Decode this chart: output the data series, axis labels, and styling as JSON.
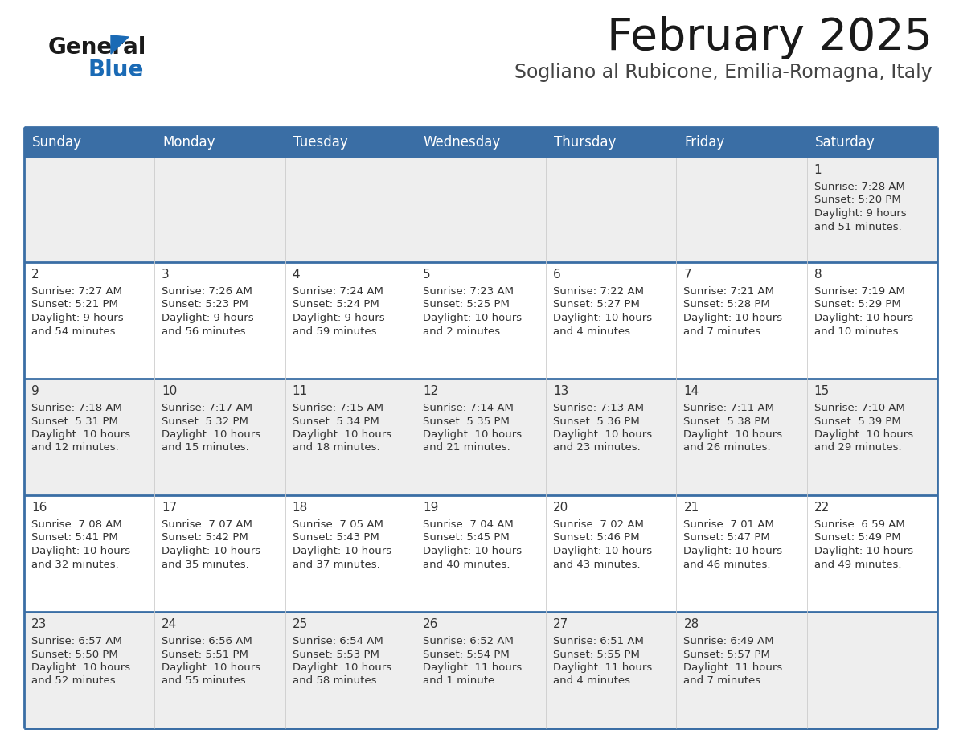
{
  "title": "February 2025",
  "subtitle": "Sogliano al Rubicone, Emilia-Romagna, Italy",
  "header_bg": "#3a6ea5",
  "header_text_color": "#ffffff",
  "cell_bg_odd": "#eeeeee",
  "cell_bg_even": "#ffffff",
  "day_num_color": "#333333",
  "info_text_color": "#333333",
  "border_color": "#3a6ea5",
  "days_of_week": [
    "Sunday",
    "Monday",
    "Tuesday",
    "Wednesday",
    "Thursday",
    "Friday",
    "Saturday"
  ],
  "weeks": [
    [
      null,
      null,
      null,
      null,
      null,
      null,
      {
        "day": 1,
        "sunrise": "7:28 AM",
        "sunset": "5:20 PM",
        "daylight": "9 hours",
        "daylight2": "and 51 minutes."
      }
    ],
    [
      {
        "day": 2,
        "sunrise": "7:27 AM",
        "sunset": "5:21 PM",
        "daylight": "9 hours",
        "daylight2": "and 54 minutes."
      },
      {
        "day": 3,
        "sunrise": "7:26 AM",
        "sunset": "5:23 PM",
        "daylight": "9 hours",
        "daylight2": "and 56 minutes."
      },
      {
        "day": 4,
        "sunrise": "7:24 AM",
        "sunset": "5:24 PM",
        "daylight": "9 hours",
        "daylight2": "and 59 minutes."
      },
      {
        "day": 5,
        "sunrise": "7:23 AM",
        "sunset": "5:25 PM",
        "daylight": "10 hours",
        "daylight2": "and 2 minutes."
      },
      {
        "day": 6,
        "sunrise": "7:22 AM",
        "sunset": "5:27 PM",
        "daylight": "10 hours",
        "daylight2": "and 4 minutes."
      },
      {
        "day": 7,
        "sunrise": "7:21 AM",
        "sunset": "5:28 PM",
        "daylight": "10 hours",
        "daylight2": "and 7 minutes."
      },
      {
        "day": 8,
        "sunrise": "7:19 AM",
        "sunset": "5:29 PM",
        "daylight": "10 hours",
        "daylight2": "and 10 minutes."
      }
    ],
    [
      {
        "day": 9,
        "sunrise": "7:18 AM",
        "sunset": "5:31 PM",
        "daylight": "10 hours",
        "daylight2": "and 12 minutes."
      },
      {
        "day": 10,
        "sunrise": "7:17 AM",
        "sunset": "5:32 PM",
        "daylight": "10 hours",
        "daylight2": "and 15 minutes."
      },
      {
        "day": 11,
        "sunrise": "7:15 AM",
        "sunset": "5:34 PM",
        "daylight": "10 hours",
        "daylight2": "and 18 minutes."
      },
      {
        "day": 12,
        "sunrise": "7:14 AM",
        "sunset": "5:35 PM",
        "daylight": "10 hours",
        "daylight2": "and 21 minutes."
      },
      {
        "day": 13,
        "sunrise": "7:13 AM",
        "sunset": "5:36 PM",
        "daylight": "10 hours",
        "daylight2": "and 23 minutes."
      },
      {
        "day": 14,
        "sunrise": "7:11 AM",
        "sunset": "5:38 PM",
        "daylight": "10 hours",
        "daylight2": "and 26 minutes."
      },
      {
        "day": 15,
        "sunrise": "7:10 AM",
        "sunset": "5:39 PM",
        "daylight": "10 hours",
        "daylight2": "and 29 minutes."
      }
    ],
    [
      {
        "day": 16,
        "sunrise": "7:08 AM",
        "sunset": "5:41 PM",
        "daylight": "10 hours",
        "daylight2": "and 32 minutes."
      },
      {
        "day": 17,
        "sunrise": "7:07 AM",
        "sunset": "5:42 PM",
        "daylight": "10 hours",
        "daylight2": "and 35 minutes."
      },
      {
        "day": 18,
        "sunrise": "7:05 AM",
        "sunset": "5:43 PM",
        "daylight": "10 hours",
        "daylight2": "and 37 minutes."
      },
      {
        "day": 19,
        "sunrise": "7:04 AM",
        "sunset": "5:45 PM",
        "daylight": "10 hours",
        "daylight2": "and 40 minutes."
      },
      {
        "day": 20,
        "sunrise": "7:02 AM",
        "sunset": "5:46 PM",
        "daylight": "10 hours",
        "daylight2": "and 43 minutes."
      },
      {
        "day": 21,
        "sunrise": "7:01 AM",
        "sunset": "5:47 PM",
        "daylight": "10 hours",
        "daylight2": "and 46 minutes."
      },
      {
        "day": 22,
        "sunrise": "6:59 AM",
        "sunset": "5:49 PM",
        "daylight": "10 hours",
        "daylight2": "and 49 minutes."
      }
    ],
    [
      {
        "day": 23,
        "sunrise": "6:57 AM",
        "sunset": "5:50 PM",
        "daylight": "10 hours",
        "daylight2": "and 52 minutes."
      },
      {
        "day": 24,
        "sunrise": "6:56 AM",
        "sunset": "5:51 PM",
        "daylight": "10 hours",
        "daylight2": "and 55 minutes."
      },
      {
        "day": 25,
        "sunrise": "6:54 AM",
        "sunset": "5:53 PM",
        "daylight": "10 hours",
        "daylight2": "and 58 minutes."
      },
      {
        "day": 26,
        "sunrise": "6:52 AM",
        "sunset": "5:54 PM",
        "daylight": "11 hours",
        "daylight2": "and 1 minute."
      },
      {
        "day": 27,
        "sunrise": "6:51 AM",
        "sunset": "5:55 PM",
        "daylight": "11 hours",
        "daylight2": "and 4 minutes."
      },
      {
        "day": 28,
        "sunrise": "6:49 AM",
        "sunset": "5:57 PM",
        "daylight": "11 hours",
        "daylight2": "and 7 minutes."
      },
      null
    ]
  ],
  "logo_color_general": "#1a1a1a",
  "logo_color_blue": "#1a6ab5",
  "logo_triangle_color": "#1a6ab5",
  "title_color": "#1a1a1a",
  "subtitle_color": "#444444",
  "fig_width": 11.88,
  "fig_height": 9.18,
  "dpi": 100
}
